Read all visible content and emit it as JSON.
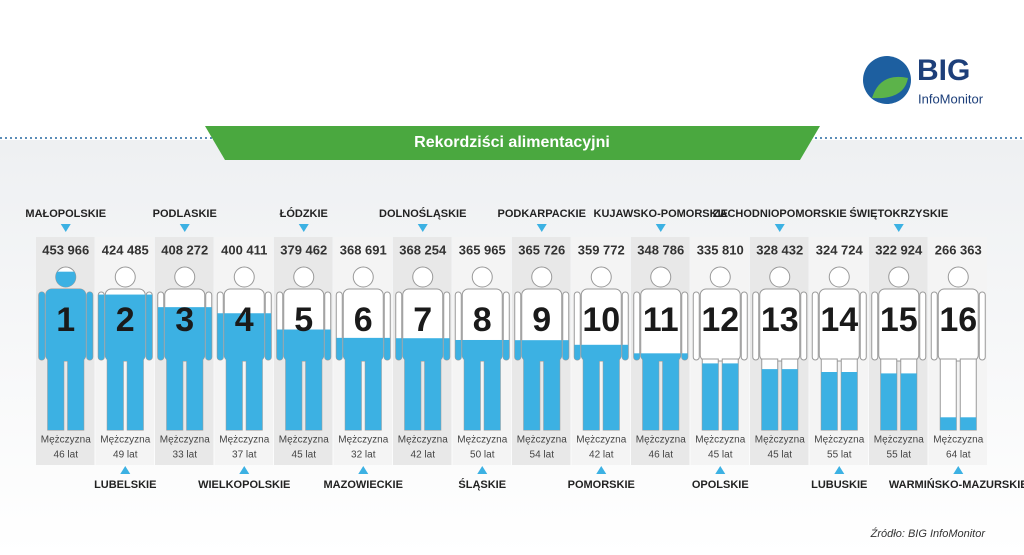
{
  "logo": {
    "name": "BIG",
    "subname": "InfoMonitor"
  },
  "source": "Źródło: BIG InfoMonitor",
  "chart_data": {
    "type": "bar",
    "title": "Rekordziści alimentacyjni",
    "categories": [
      "MAŁOPOLSKIE",
      "LUBELSKIE",
      "PODLASKIE",
      "WIELKOPOLSKIE",
      "ŁÓDZKIE",
      "MAZOWIECKIE",
      "DOLNOŚLĄSKIE",
      "ŚLĄSKIE",
      "PODKARPACKIE",
      "POMORSKIE",
      "KUJAWSKO-POMORSKIE",
      "OPOLSKIE",
      "ZACHODNIOPOMORSKIE",
      "LUBUSKIE",
      "ŚWIĘTOKRZYSKIE",
      "WARMIŃSKO-MAZURSKIE"
    ],
    "values": [
      453966,
      424485,
      408272,
      400411,
      379462,
      368691,
      368254,
      365965,
      365726,
      359772,
      348786,
      335810,
      328432,
      324724,
      322924,
      266363
    ],
    "value_labels": [
      "453 966",
      "424 485",
      "408 272",
      "400 411",
      "379 462",
      "368 691",
      "368 254",
      "365 965",
      "365 726",
      "359 772",
      "348 786",
      "335 810",
      "328 432",
      "324 724",
      "322 924",
      "266 363"
    ],
    "ranks": [
      1,
      2,
      3,
      4,
      5,
      6,
      7,
      8,
      9,
      10,
      11,
      12,
      13,
      14,
      15,
      16
    ],
    "gender": "Mężczyzna",
    "age_labels": [
      "46 lat",
      "49 lat",
      "33 lat",
      "37 lat",
      "45 lat",
      "32 lat",
      "42 lat",
      "50 lat",
      "54 lat",
      "42 lat",
      "46 lat",
      "45 lat",
      "45 lat",
      "55 lat",
      "55 lat",
      "64 lat"
    ],
    "ylim": [
      250000,
      460000
    ],
    "color": "#3cb1e3"
  }
}
